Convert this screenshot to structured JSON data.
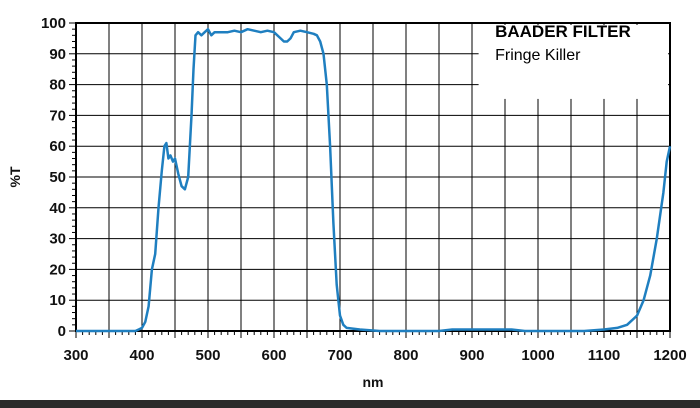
{
  "chart_data": {
    "type": "line",
    "title": "BAADER FILTER",
    "subtitle": "Fringe Killer",
    "xlabel": "nm",
    "ylabel": "%T",
    "xlim": [
      300,
      1200
    ],
    "ylim": [
      0,
      100
    ],
    "x_ticks": [
      300,
      400,
      500,
      600,
      700,
      800,
      900,
      1000,
      1100,
      1200
    ],
    "y_ticks": [
      0,
      10,
      20,
      30,
      40,
      50,
      60,
      70,
      80,
      90,
      100
    ],
    "grid": true,
    "legend_position": "top-right",
    "colors": {
      "line": "#1f7fc0",
      "grid": "#000000"
    },
    "series": [
      {
        "points": [
          [
            300,
            0
          ],
          [
            390,
            0
          ],
          [
            395,
            0.5
          ],
          [
            400,
            1
          ],
          [
            405,
            3
          ],
          [
            410,
            8
          ],
          [
            415,
            20
          ],
          [
            420,
            25
          ],
          [
            425,
            40
          ],
          [
            430,
            52
          ],
          [
            434,
            60
          ],
          [
            437,
            61
          ],
          [
            440,
            56
          ],
          [
            443,
            57
          ],
          [
            447,
            55
          ],
          [
            450,
            56
          ],
          [
            455,
            51
          ],
          [
            460,
            47
          ],
          [
            465,
            46
          ],
          [
            470,
            50
          ],
          [
            475,
            70
          ],
          [
            478,
            85
          ],
          [
            481,
            96
          ],
          [
            485,
            97
          ],
          [
            490,
            96
          ],
          [
            495,
            97
          ],
          [
            500,
            98
          ],
          [
            505,
            96
          ],
          [
            510,
            97
          ],
          [
            520,
            97
          ],
          [
            530,
            97
          ],
          [
            540,
            97.5
          ],
          [
            550,
            97
          ],
          [
            560,
            98
          ],
          [
            570,
            97.5
          ],
          [
            580,
            97
          ],
          [
            590,
            97.5
          ],
          [
            600,
            97
          ],
          [
            610,
            95
          ],
          [
            615,
            94
          ],
          [
            620,
            94
          ],
          [
            625,
            95
          ],
          [
            630,
            97
          ],
          [
            640,
            97.5
          ],
          [
            650,
            97
          ],
          [
            660,
            96.5
          ],
          [
            665,
            96
          ],
          [
            670,
            94
          ],
          [
            675,
            90
          ],
          [
            680,
            80
          ],
          [
            685,
            60
          ],
          [
            690,
            35
          ],
          [
            695,
            15
          ],
          [
            700,
            5
          ],
          [
            705,
            2
          ],
          [
            710,
            1
          ],
          [
            730,
            0.5
          ],
          [
            760,
            0
          ],
          [
            850,
            0
          ],
          [
            870,
            0.5
          ],
          [
            960,
            0.5
          ],
          [
            980,
            0
          ],
          [
            1070,
            0
          ],
          [
            1100,
            0.5
          ],
          [
            1120,
            1
          ],
          [
            1135,
            2
          ],
          [
            1150,
            5
          ],
          [
            1160,
            10
          ],
          [
            1170,
            18
          ],
          [
            1180,
            30
          ],
          [
            1190,
            45
          ],
          [
            1195,
            55
          ],
          [
            1200,
            60
          ]
        ]
      }
    ]
  }
}
